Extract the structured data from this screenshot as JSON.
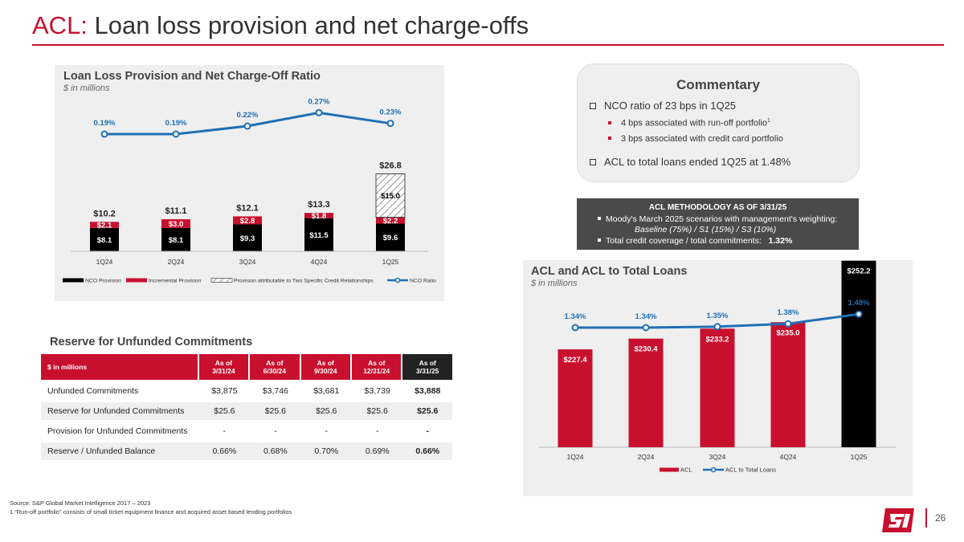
{
  "title": {
    "prefix": "ACL:",
    "rest": "Loan loss provision and net charge-offs"
  },
  "loan_panel": {
    "title": "Loan Loss Provision and Net Charge-Off Ratio",
    "subtitle": "$ in millions"
  },
  "acl_panel": {
    "title": "ACL and ACL to Total Loans",
    "subtitle": "$ in millions"
  },
  "commentary": {
    "title": "Commentary",
    "b1": "NCO ratio of 23 bps in 1Q25",
    "b1a": "4 bps associated with run-off portfolio",
    "b1a_sup": "1",
    "b1b": "3 bps associated with credit card portfolio",
    "b2": "ACL to total loans ended 1Q25 at 1.48%"
  },
  "methodology": {
    "title": "ACL METHODOLOGY AS OF 3/31/25",
    "l1": "Moody's March 2025 scenarios with management's weighting:",
    "l2": "Baseline (75%) / S1 (15%) / S3 (10%)",
    "l3": "Total credit coverage / total commitments:",
    "l3_value": "1.32%"
  },
  "reserve": {
    "title": "Reserve for Unfunded Commitments",
    "header": [
      "$ in millions",
      "As of\n3/31/24",
      "As of\n6/30/24",
      "As of\n9/30/24",
      "As of\n12/31/24",
      "As of\n3/31/25"
    ],
    "rows": [
      [
        "Unfunded Commitments",
        "$3,875",
        "$3,746",
        "$3,681",
        "$3,739",
        "$3,888"
      ],
      [
        "Reserve for Unfunded Commitments",
        "$25.6",
        "$25.6",
        "$25.6",
        "$25.6",
        "$25.6"
      ],
      [
        "Provision for Unfunded Commitments",
        "-",
        "-",
        "-",
        "-",
        "-"
      ],
      [
        "Reserve / Unfunded Balance",
        "0.66%",
        "0.68%",
        "0.70%",
        "0.69%",
        "0.66%"
      ]
    ]
  },
  "footnotes": {
    "source": "Source: S&P Global Market Intelligence 2017 – 2023",
    "note1": "1  “Run-off portfolio” consists of small ticket equipment finance and acquired asset based lending portfolios"
  },
  "page_number": "26",
  "colors": {
    "red": "#c8102e",
    "black": "#000000",
    "blue": "#1f6fb5",
    "dark": "#4a4a4a"
  },
  "chart_data": [
    {
      "type": "bar",
      "title": "Loan Loss Provision and Net Charge-Off Ratio",
      "subtitle": "$ in millions",
      "stacked": true,
      "categories": [
        "1Q24",
        "2Q24",
        "3Q24",
        "4Q24",
        "1Q25"
      ],
      "series": [
        {
          "name": "NCO Provision",
          "values": [
            8.1,
            8.1,
            9.3,
            11.5,
            9.6
          ],
          "labels": [
            "$8.1",
            "$8.1",
            "$9.3",
            "$11.5",
            "$9.6"
          ],
          "color": "#000000"
        },
        {
          "name": "Incremental Provision",
          "values": [
            2.1,
            3.0,
            2.8,
            1.8,
            2.2
          ],
          "labels": [
            "$2.1",
            "$3.0",
            "$2.8",
            "$1.8",
            "$2.2"
          ],
          "color": "#c8102e"
        },
        {
          "name": "Provision attributable to Two Specific Credit Relationships",
          "values": [
            0,
            0,
            0,
            0,
            15.0
          ],
          "labels": [
            "",
            "",
            "",
            "",
            "$15.0"
          ],
          "pattern": "hatch"
        }
      ],
      "totals": [
        10.2,
        11.1,
        12.1,
        13.3,
        26.8
      ],
      "total_labels": [
        "$10.2",
        "$11.1",
        "$12.1",
        "$13.3",
        "$26.8"
      ],
      "line": {
        "name": "NCO Ratio",
        "values": [
          0.19,
          0.19,
          0.22,
          0.27,
          0.23
        ],
        "labels": [
          "0.19%",
          "0.19%",
          "0.22%",
          "0.27%",
          "0.23%"
        ],
        "color": "#1f6fb5"
      },
      "legend": "bottom"
    },
    {
      "type": "bar",
      "title": "ACL and ACL to Total Loans",
      "subtitle": "$ in millions",
      "categories": [
        "1Q24",
        "2Q24",
        "3Q24",
        "4Q24",
        "1Q25"
      ],
      "series": [
        {
          "name": "ACL",
          "values": [
            227.4,
            230.4,
            233.2,
            235.0,
            252.2
          ],
          "labels": [
            "$227.4",
            "$230.4",
            "$233.2",
            "$235.0",
            "$252.2"
          ],
          "color": "#c8102e",
          "highlight_last": "#000000"
        }
      ],
      "line": {
        "name": "ACL to Total Loans",
        "values": [
          1.34,
          1.34,
          1.35,
          1.38,
          1.48
        ],
        "labels": [
          "1.34%",
          "1.34%",
          "1.35%",
          "1.38%",
          "1.48%"
        ],
        "color": "#1f6fb5"
      },
      "legend": "bottom"
    }
  ]
}
